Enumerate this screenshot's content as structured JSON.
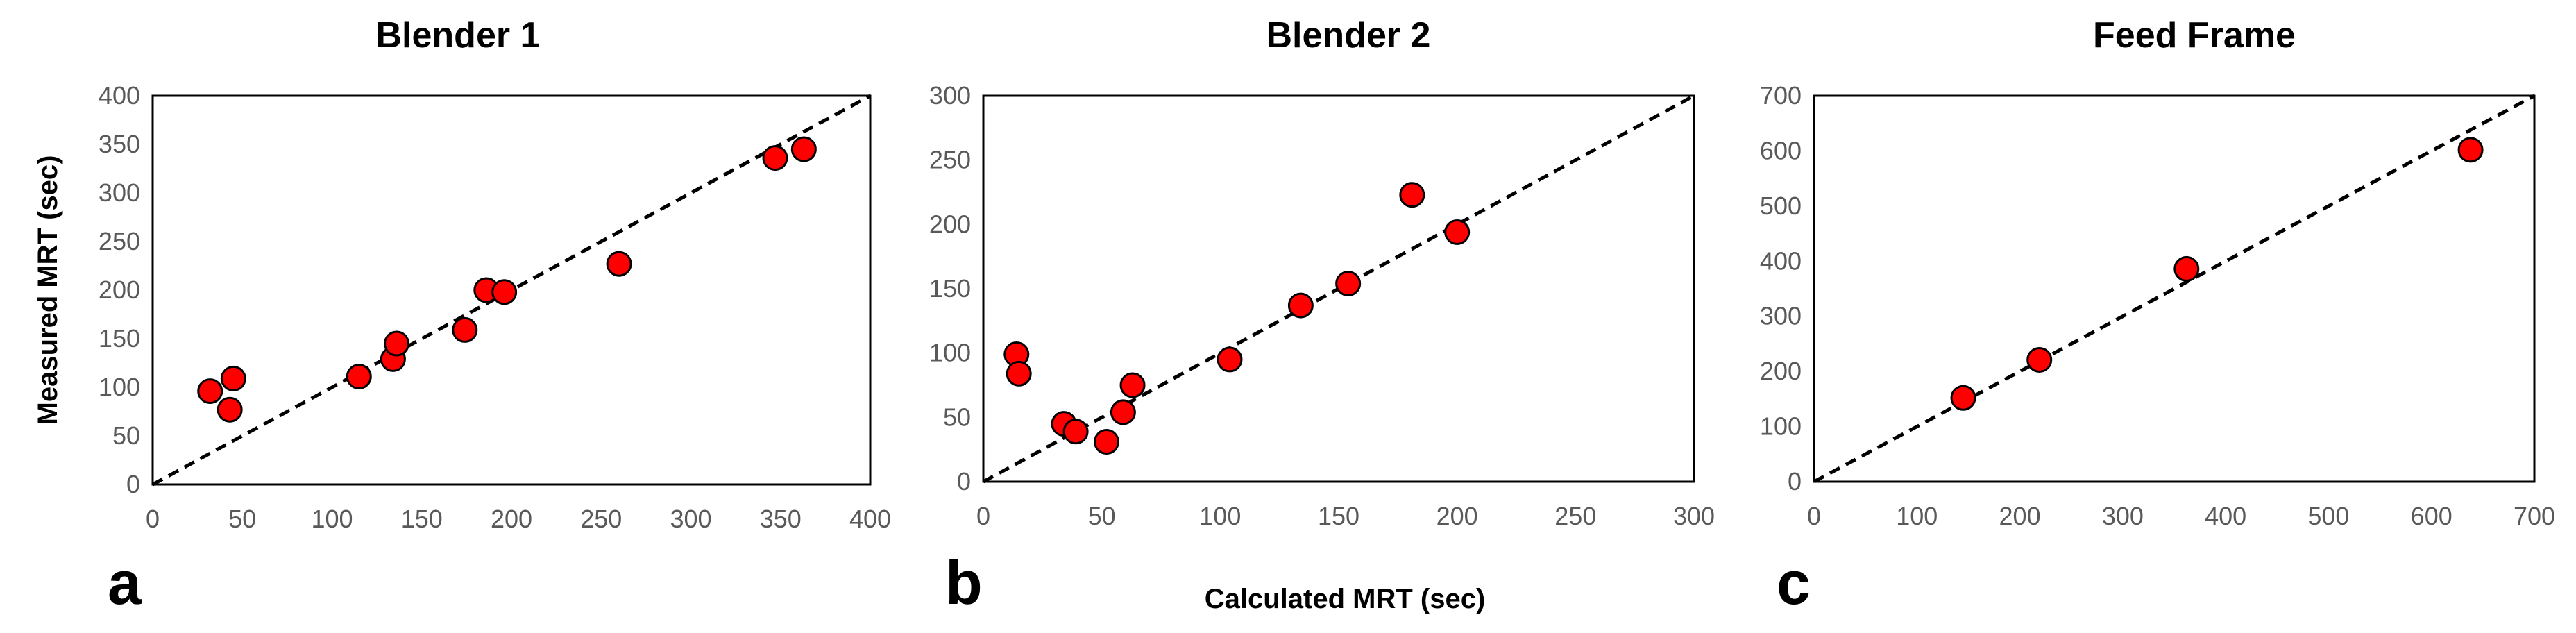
{
  "figure": {
    "ylabel": "Measured MRT (sec)",
    "xlabel": "Calculated MRT (sec)"
  },
  "chart_data": [
    {
      "type": "scatter",
      "title": "Blender 1",
      "panel_label": "a",
      "xlabel": "Calculated MRT (sec)",
      "ylabel": "Measured MRT (sec)",
      "xlim": [
        0,
        400
      ],
      "ylim": [
        0,
        400
      ],
      "xticks": [
        0,
        50,
        100,
        150,
        200,
        250,
        300,
        350,
        400
      ],
      "yticks": [
        0,
        50,
        100,
        150,
        200,
        250,
        300,
        350,
        400
      ],
      "reference_line": "y = x (dashed)",
      "marker_color": "#ff0000",
      "points": [
        {
          "x": 32,
          "y": 96
        },
        {
          "x": 43,
          "y": 77
        },
        {
          "x": 45,
          "y": 109
        },
        {
          "x": 115,
          "y": 111
        },
        {
          "x": 134,
          "y": 129
        },
        {
          "x": 136,
          "y": 145
        },
        {
          "x": 174,
          "y": 159
        },
        {
          "x": 186,
          "y": 200
        },
        {
          "x": 196,
          "y": 198
        },
        {
          "x": 260,
          "y": 227
        },
        {
          "x": 347,
          "y": 336
        },
        {
          "x": 363,
          "y": 345
        }
      ]
    },
    {
      "type": "scatter",
      "title": "Blender 2",
      "panel_label": "b",
      "xlabel": "Calculated MRT (sec)",
      "ylabel": "",
      "xlim": [
        0,
        300
      ],
      "ylim": [
        0,
        300
      ],
      "xticks": [
        0,
        50,
        100,
        150,
        200,
        250,
        300
      ],
      "yticks": [
        0,
        50,
        100,
        150,
        200,
        250,
        300
      ],
      "reference_line": "y = x (dashed)",
      "marker_color": "#ff0000",
      "points": [
        {
          "x": 14,
          "y": 99
        },
        {
          "x": 15,
          "y": 84
        },
        {
          "x": 34,
          "y": 45
        },
        {
          "x": 39,
          "y": 39
        },
        {
          "x": 52,
          "y": 31
        },
        {
          "x": 59,
          "y": 54
        },
        {
          "x": 63,
          "y": 75
        },
        {
          "x": 104,
          "y": 95
        },
        {
          "x": 134,
          "y": 137
        },
        {
          "x": 154,
          "y": 154
        },
        {
          "x": 181,
          "y": 223
        },
        {
          "x": 200,
          "y": 194
        }
      ]
    },
    {
      "type": "scatter",
      "title": "Feed Frame",
      "panel_label": "c",
      "xlabel": "",
      "ylabel": "",
      "xlim": [
        0,
        700
      ],
      "ylim": [
        0,
        700
      ],
      "xticks": [
        0,
        100,
        200,
        300,
        400,
        500,
        600,
        700
      ],
      "yticks": [
        0,
        100,
        200,
        300,
        400,
        500,
        600,
        700
      ],
      "reference_line": "y = x (dashed)",
      "marker_color": "#ff0000",
      "points": [
        {
          "x": 145,
          "y": 152
        },
        {
          "x": 219,
          "y": 221
        },
        {
          "x": 362,
          "y": 386
        },
        {
          "x": 638,
          "y": 602
        }
      ]
    }
  ]
}
